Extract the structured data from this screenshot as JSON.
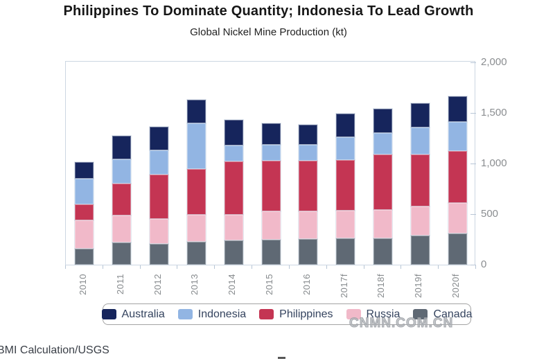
{
  "page": {
    "source": "BMI Calculation/USGS",
    "watermark": "CNMN.COM.CN"
  },
  "chart_data": {
    "type": "bar",
    "variant": "stacked",
    "title": "Philippines To Dominate Quantity; Indonesia To Lead Growth",
    "subtitle": "Global Nickel Mine Production (kt)",
    "categories": [
      "2010",
      "2011",
      "2012",
      "2013",
      "2014",
      "2015",
      "2016",
      "2017f",
      "2018f",
      "2019f",
      "2020f"
    ],
    "series": [
      {
        "name": "Australia",
        "color": "#16255c",
        "values": [
          165,
          230,
          230,
          230,
          250,
          210,
          200,
          230,
          240,
          240,
          255
        ]
      },
      {
        "name": "Indonesia",
        "color": "#92b5e3",
        "values": [
          250,
          240,
          240,
          455,
          160,
          155,
          160,
          225,
          215,
          265,
          285
        ]
      },
      {
        "name": "Philippines",
        "color": "#c43553",
        "values": [
          155,
          315,
          440,
          450,
          525,
          500,
          500,
          500,
          545,
          515,
          515
        ]
      },
      {
        "name": "Russia",
        "color": "#f1b9c9",
        "values": [
          280,
          270,
          245,
          270,
          255,
          280,
          275,
          275,
          280,
          290,
          300
        ]
      },
      {
        "name": "Canada",
        "color": "#5f6974",
        "values": [
          155,
          220,
          205,
          225,
          240,
          245,
          250,
          260,
          260,
          290,
          310
        ]
      }
    ],
    "stack_bottom_to_top": [
      "Canada",
      "Russia",
      "Philippines",
      "Indonesia",
      "Australia"
    ],
    "y_axis": {
      "min": 0,
      "max": 2000,
      "position": "right",
      "tick_values": [
        0,
        500,
        1000,
        1500,
        2000
      ],
      "tick_labels": [
        "0",
        "500",
        "1,000",
        "1,500",
        "2,000"
      ]
    },
    "x_axis": {
      "label_rotation": "vertical"
    },
    "legend": {
      "position": "bottom",
      "items": [
        "Australia",
        "Indonesia",
        "Philippines",
        "Russia",
        "Canada"
      ]
    },
    "grid": false
  }
}
